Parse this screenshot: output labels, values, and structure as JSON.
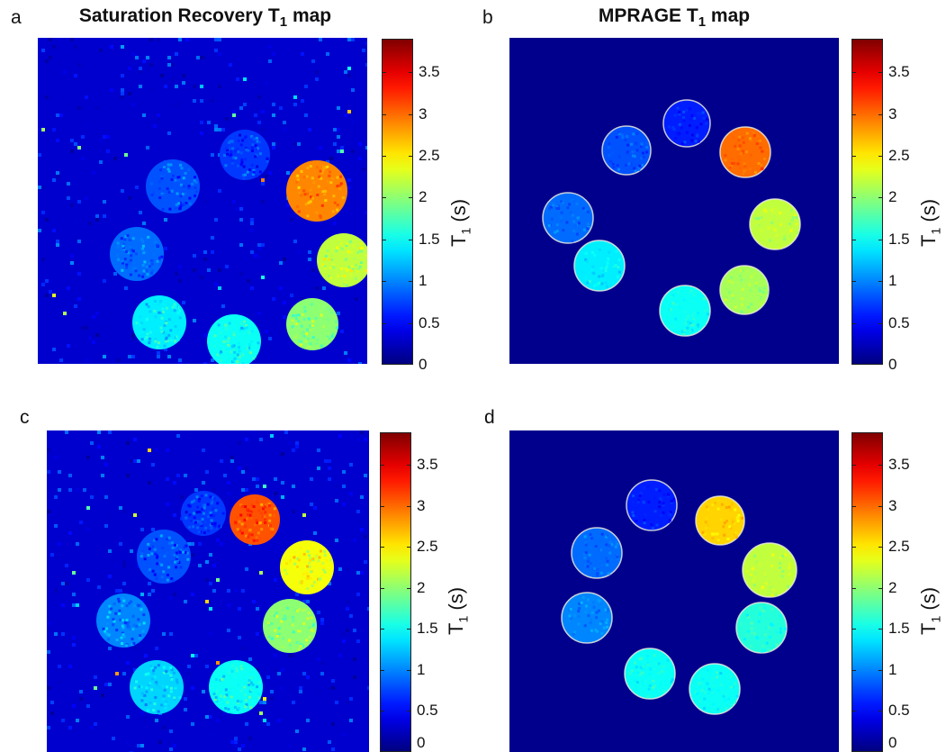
{
  "panels": [
    {
      "letter": "a",
      "title": "Saturation Recovery T",
      "title_sub": "1",
      "title_tail": " map"
    },
    {
      "letter": "b",
      "title": "MPRAGE T",
      "title_sub": "1",
      "title_tail": " map"
    },
    {
      "letter": "c",
      "title": "",
      "title_sub": "",
      "title_tail": ""
    },
    {
      "letter": "d",
      "title": "",
      "title_sub": "",
      "title_tail": ""
    }
  ],
  "colorbar": {
    "label_main": "T",
    "label_sub": "1",
    "label_unit": " (s)",
    "ticks": [
      "0",
      "0.5",
      "1",
      "1.5",
      "2",
      "2.5",
      "3",
      "3.5"
    ],
    "colormap": "jet"
  },
  "chart_data": [
    {
      "type": "heatmap",
      "panel": "a",
      "title": "Saturation Recovery T1 map",
      "colorbar_label": "T1 (s)",
      "clim": [
        0,
        3.9
      ],
      "background_value": 0.3,
      "vials_T1_s": [
        2.9,
        2.2,
        2.0,
        1.5,
        1.4,
        0.9,
        0.8,
        0.7
      ]
    },
    {
      "type": "heatmap",
      "panel": "b",
      "title": "MPRAGE T1 map",
      "colorbar_label": "T1 (s)",
      "clim": [
        0,
        3.9
      ],
      "background_value": 0.3,
      "vials_T1_s": [
        3.0,
        2.2,
        2.1,
        1.5,
        1.4,
        0.9,
        0.8,
        0.6
      ]
    },
    {
      "type": "heatmap",
      "panel": "c",
      "title": "",
      "colorbar_label": "T1 (s)",
      "clim": [
        0,
        3.9
      ],
      "background_value": 0.3,
      "vials_T1_s": [
        3.1,
        2.4,
        2.0,
        1.5,
        1.3,
        1.0,
        0.8,
        0.7
      ]
    },
    {
      "type": "heatmap",
      "panel": "d",
      "title": "",
      "colorbar_label": "T1 (s)",
      "clim": [
        0,
        3.9
      ],
      "background_value": 0.3,
      "vials_T1_s": [
        2.6,
        2.2,
        1.6,
        1.5,
        1.5,
        1.0,
        0.9,
        0.6
      ]
    }
  ]
}
